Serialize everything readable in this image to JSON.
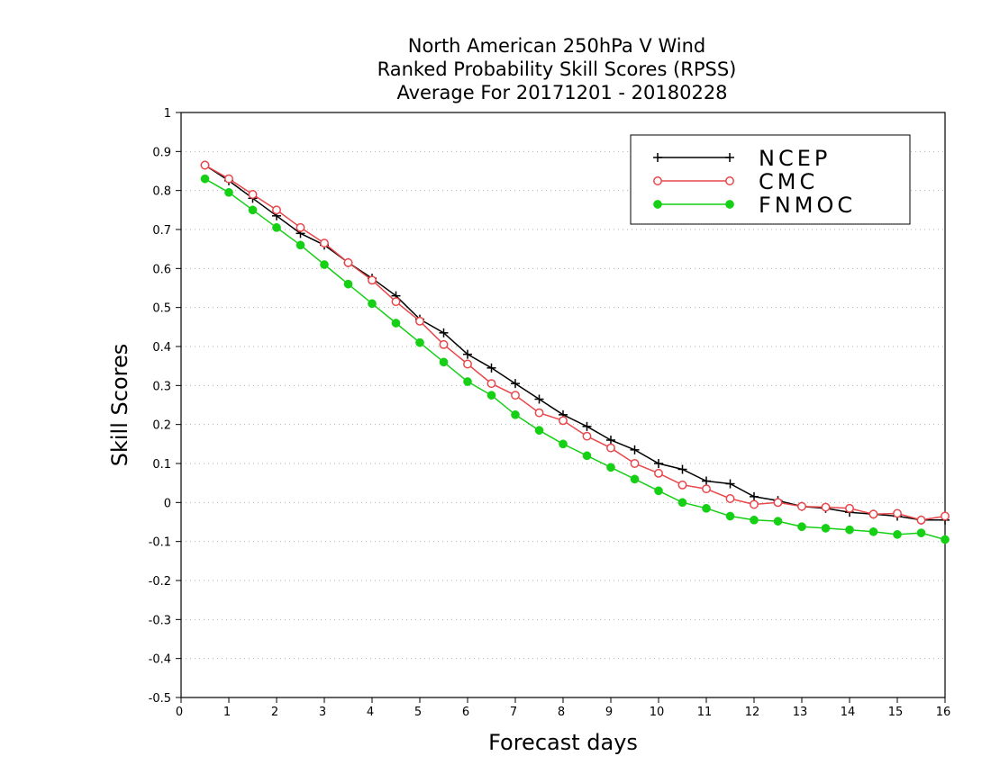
{
  "chart_data": {
    "type": "line",
    "title": [
      "North American 250hPa V Wind",
      "Ranked Probability Skill Scores (RPSS)",
      "Average For 20171201 - 20180228"
    ],
    "xlabel": "Forecast days",
    "ylabel": "Skill Scores",
    "xlim": [
      0,
      16
    ],
    "ylim": [
      -0.5,
      1
    ],
    "x_ticks": [
      "0",
      "1",
      "2",
      "3",
      "4",
      "5",
      "6",
      "7",
      "8",
      "9",
      "10",
      "11",
      "12",
      "13",
      "14",
      "15",
      "16"
    ],
    "y_ticks": [
      "1",
      "0.9",
      "0.8",
      "0.7",
      "0.6",
      "0.5",
      "0.4",
      "0.3",
      "0.2",
      "0.1",
      "0",
      "-0.1",
      "-0.2",
      "-0.3",
      "-0.4",
      "-0.5"
    ],
    "grid": true,
    "legend_position": "top-right",
    "x": [
      0.5,
      1,
      1.5,
      2,
      2.5,
      3,
      3.5,
      4,
      4.5,
      5,
      5.5,
      6,
      6.5,
      7,
      7.5,
      8,
      8.5,
      9,
      9.5,
      10,
      10.5,
      11,
      11.5,
      12,
      12.5,
      13,
      13.5,
      14,
      14.5,
      15,
      15.5,
      16
    ],
    "series": [
      {
        "name": "NCEP",
        "color": "#000000",
        "marker": "plus",
        "values": [
          0.865,
          0.825,
          0.78,
          0.735,
          0.69,
          0.66,
          0.615,
          0.575,
          0.53,
          0.47,
          0.435,
          0.38,
          0.345,
          0.305,
          0.265,
          0.225,
          0.195,
          0.16,
          0.135,
          0.1,
          0.085,
          0.055,
          0.048,
          0.015,
          0.005,
          -0.01,
          -0.015,
          -0.025,
          -0.03,
          -0.035,
          -0.045,
          -0.045
        ]
      },
      {
        "name": "CMC",
        "color": "#e8474b",
        "marker": "open-circle",
        "values": [
          0.865,
          0.83,
          0.79,
          0.75,
          0.705,
          0.665,
          0.615,
          0.57,
          0.515,
          0.465,
          0.405,
          0.355,
          0.305,
          0.275,
          0.23,
          0.21,
          0.17,
          0.14,
          0.1,
          0.075,
          0.045,
          0.035,
          0.01,
          -0.005,
          0.0,
          -0.01,
          -0.012,
          -0.015,
          -0.03,
          -0.028,
          -0.045,
          -0.035
        ]
      },
      {
        "name": "FNMOC",
        "color": "#16d016",
        "marker": "filled-circle",
        "values": [
          0.83,
          0.795,
          0.75,
          0.705,
          0.66,
          0.61,
          0.56,
          0.51,
          0.46,
          0.41,
          0.36,
          0.31,
          0.275,
          0.225,
          0.185,
          0.15,
          0.12,
          0.09,
          0.06,
          0.03,
          0.0,
          -0.015,
          -0.035,
          -0.045,
          -0.048,
          -0.062,
          -0.066,
          -0.07,
          -0.075,
          -0.082,
          -0.078,
          -0.095
        ]
      }
    ]
  }
}
